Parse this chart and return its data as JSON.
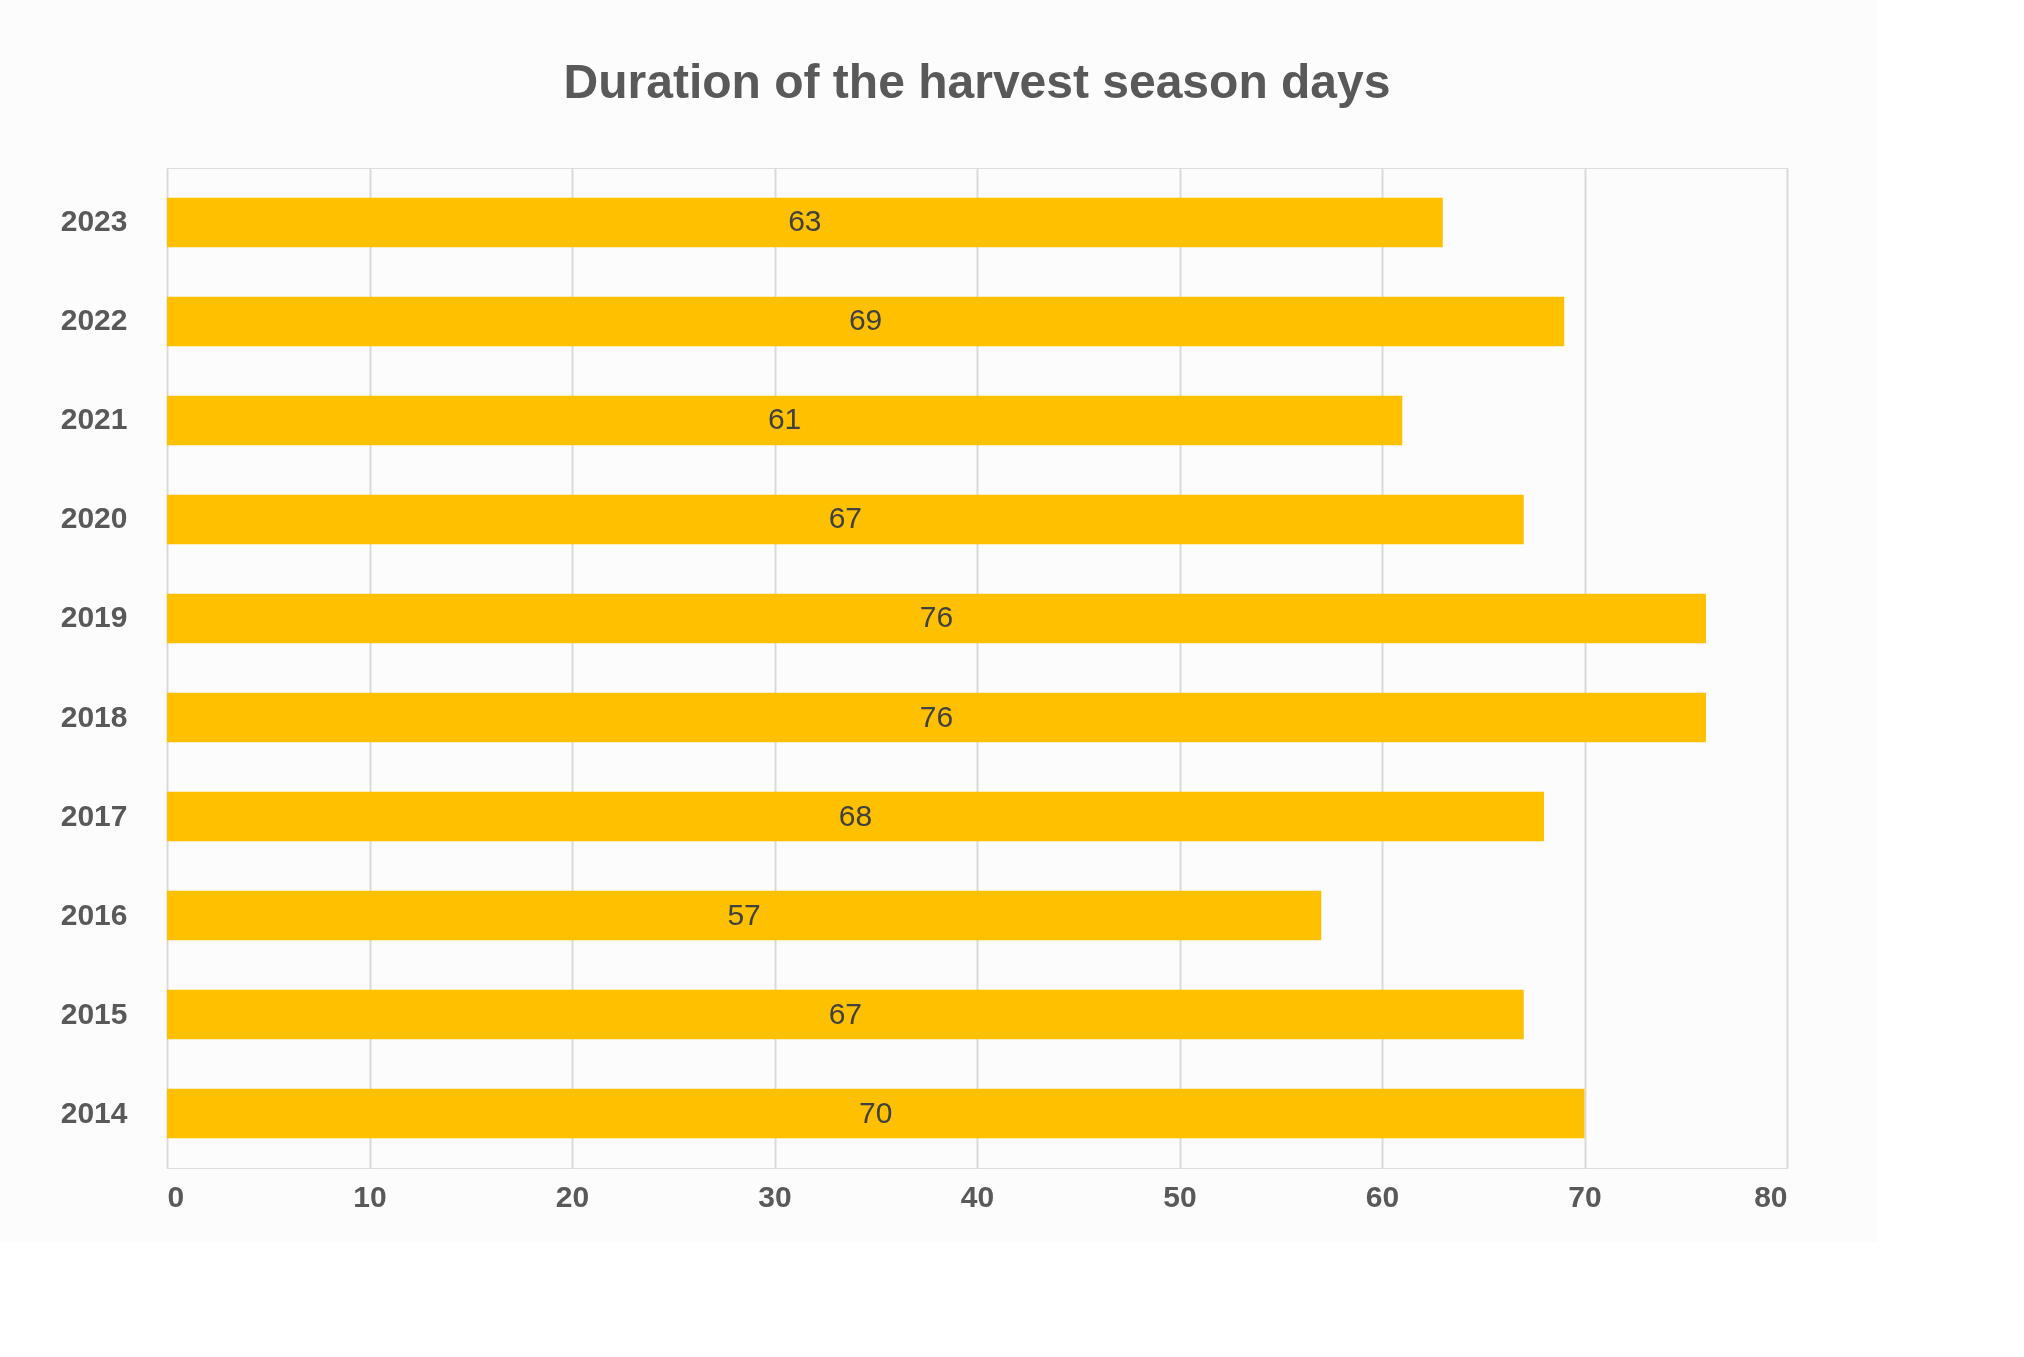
{
  "chart_data": {
    "type": "bar",
    "orientation": "horizontal",
    "title": "Duration of the harvest season days",
    "categories": [
      "2023",
      "2022",
      "2021",
      "2020",
      "2019",
      "2018",
      "2017",
      "2016",
      "2015",
      "2014"
    ],
    "values": [
      63,
      69,
      61,
      67,
      76,
      76,
      68,
      57,
      67,
      70
    ],
    "color": "#ffc000",
    "xlim": [
      0,
      80
    ],
    "xticks": [
      0,
      10,
      20,
      30,
      40,
      50,
      60,
      70,
      80
    ],
    "grid": "x",
    "data_labels": true
  }
}
